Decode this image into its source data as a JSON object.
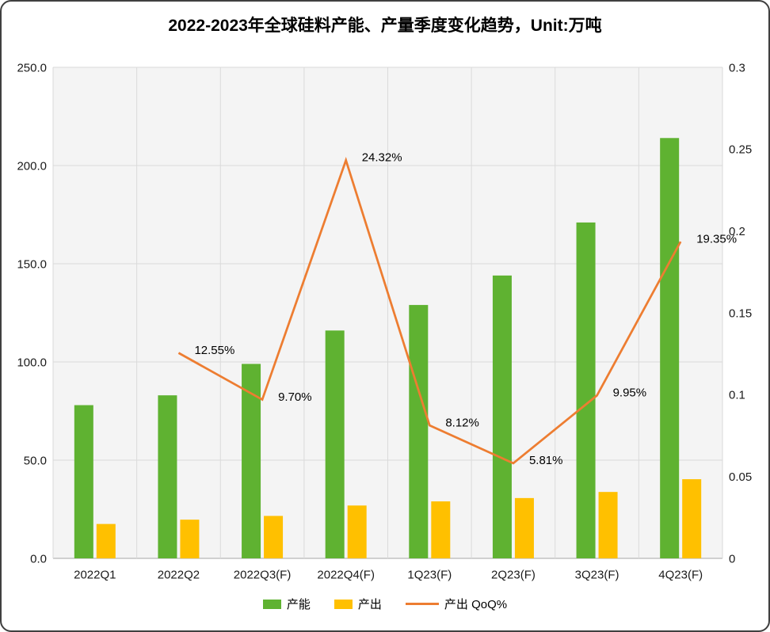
{
  "chart_data": {
    "type": "combo-bar-line",
    "title": "2022-2023年全球硅料产能、产量季度变化趋势，Unit:万吨",
    "categories": [
      "2022Q1",
      "2022Q2",
      "2022Q3(F)",
      "2022Q4(F)",
      "1Q23(F)",
      "2Q23(F)",
      "3Q23(F)",
      "4Q23(F)"
    ],
    "series": [
      {
        "name": "产能",
        "type": "bar",
        "axis": "left",
        "color": "#5FB231",
        "values": [
          78,
          83,
          99,
          116,
          129,
          144,
          171,
          214
        ]
      },
      {
        "name": "产出",
        "type": "bar",
        "axis": "left",
        "color": "#FFC000",
        "values": [
          17.5,
          19.7,
          21.6,
          26.9,
          29.0,
          30.7,
          33.8,
          40.3
        ]
      },
      {
        "name": "产出 QoQ%",
        "type": "line",
        "axis": "right",
        "color": "#ED7D31",
        "values": [
          null,
          0.1255,
          0.097,
          0.2432,
          0.0812,
          0.0581,
          0.0995,
          0.1935
        ],
        "labels": [
          null,
          "12.55%",
          "9.70%",
          "24.32%",
          "8.12%",
          "5.81%",
          "9.95%",
          "19.35%"
        ]
      }
    ],
    "left_axis": {
      "min": 0,
      "max": 250,
      "step": 50,
      "tick_labels": [
        "0.0",
        "50.0",
        "100.0",
        "150.0",
        "200.0",
        "250.0"
      ]
    },
    "right_axis": {
      "min": 0,
      "max": 0.3,
      "step": 0.05,
      "tick_labels": [
        "0",
        "0.05",
        "0.1",
        "0.15",
        "0.2",
        "0.25",
        "0.3"
      ]
    },
    "grid": true,
    "legend_position": "bottom"
  }
}
